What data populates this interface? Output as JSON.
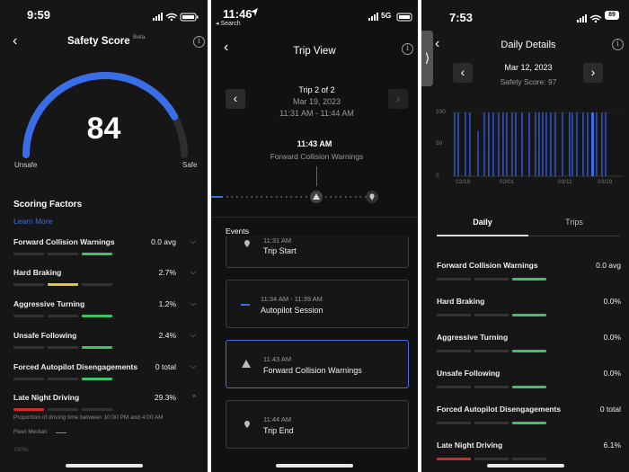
{
  "panel1": {
    "time": "9:59",
    "title": "Safety Score",
    "beta": "Beta",
    "score": "84",
    "unsafe": "Unsafe",
    "safe": "Safe",
    "scoring_factors": "Scoring Factors",
    "learn_more": "Learn More",
    "factors": [
      {
        "label": "Forward Collision Warnings",
        "value": "0.0 avg",
        "chev": "⌵"
      },
      {
        "label": "Hard Braking",
        "value": "2.7%",
        "chev": "⌵"
      },
      {
        "label": "Aggressive Turning",
        "value": "1.2%",
        "chev": "⌵"
      },
      {
        "label": "Unsafe Following",
        "value": "2.4%",
        "chev": "⌵"
      },
      {
        "label": "Forced Autopilot Disengagements",
        "value": "0 total",
        "chev": "⌵"
      },
      {
        "label": "Late Night Driving",
        "value": "29.3%",
        "chev": "^"
      }
    ],
    "late_night_desc": "Proportion of driving time between 10:00 PM and 4:00 AM",
    "fleet_median": "Fleet Median",
    "pct100": "100%",
    "score_fraction": 0.84,
    "accent": "#3a6ee8"
  },
  "panel2": {
    "time": "11:46",
    "back_search": "◂ Search",
    "signal": "5G",
    "title": "Trip View",
    "trip": "Trip 2 of 2",
    "date": "Mar 19, 2023",
    "range": "11:31 AM - 11:44 AM",
    "event_time": "11:43 AM",
    "event_name": "Forward Collision Warnings",
    "events_label": "Events",
    "cards": [
      {
        "time": "11:31 AM",
        "title": "Trip Start"
      },
      {
        "time": "11:34 AM - 11:39 AM",
        "title": "Autopilot Session"
      },
      {
        "time": "11:43 AM",
        "title": "Forward Collision Warnings"
      },
      {
        "time": "11:44 AM",
        "title": "Trip End"
      }
    ]
  },
  "panel3": {
    "time": "7:53",
    "battery": "89",
    "title": "Daily Details",
    "date": "Mar 12, 2023",
    "safety": "Safety Score: 97",
    "y_ticks": [
      "100",
      "50",
      "0"
    ],
    "x_ticks": [
      "02/19",
      "03/01",
      "03/11",
      "03/19"
    ],
    "tab_daily": "Daily",
    "tab_trips": "Trips",
    "factors": [
      {
        "label": "Forward Collision Warnings",
        "value": "0.0 avg"
      },
      {
        "label": "Hard Braking",
        "value": "0.0%"
      },
      {
        "label": "Aggressive Turning",
        "value": "0.0%"
      },
      {
        "label": "Unsafe Following",
        "value": "0.0%"
      },
      {
        "label": "Forced Autopilot Disengagements",
        "value": "0 total"
      },
      {
        "label": "Late Night Driving",
        "value": "6.1%"
      }
    ]
  }
}
